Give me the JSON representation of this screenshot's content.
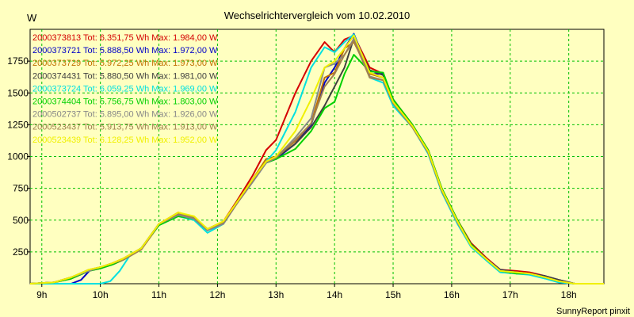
{
  "chart_data": {
    "type": "line",
    "title": "Wechselrichtervergleich vom 10.02.2010",
    "ylabel": "W",
    "credit": "SunnyReport pinxit",
    "xlim": [
      8.8,
      18.6
    ],
    "ylim": [
      0,
      2000
    ],
    "grid": true,
    "legend_position": "top-left",
    "x_ticks": [
      {
        "value": 9,
        "label": "9h"
      },
      {
        "value": 10,
        "label": "10h"
      },
      {
        "value": 11,
        "label": "11h"
      },
      {
        "value": 12,
        "label": "12h"
      },
      {
        "value": 13,
        "label": "13h"
      },
      {
        "value": 14,
        "label": "14h"
      },
      {
        "value": 15,
        "label": "15h"
      },
      {
        "value": 16,
        "label": "16h"
      },
      {
        "value": 17,
        "label": "17h"
      },
      {
        "value": 18,
        "label": "18h"
      }
    ],
    "y_ticks": [
      {
        "value": 250,
        "label": "250"
      },
      {
        "value": 500,
        "label": "500"
      },
      {
        "value": 750,
        "label": "750"
      },
      {
        "value": 1000,
        "label": "1000"
      },
      {
        "value": 1250,
        "label": "1250"
      },
      {
        "value": 1500,
        "label": "1500"
      },
      {
        "value": 1750,
        "label": "1750"
      }
    ],
    "series": [
      {
        "name": "2000373813 Tot: 6.351,75 Wh Max: 1.984,00 W",
        "color": "#d40000",
        "x": [
          8.8,
          9.2,
          9.5,
          9.8,
          10.0,
          10.2,
          10.4,
          10.7,
          11.0,
          11.33,
          11.6,
          11.83,
          12.1,
          12.33,
          12.6,
          12.83,
          13.0,
          13.33,
          13.6,
          13.83,
          14.0,
          14.17,
          14.33,
          14.6,
          14.83,
          15.0,
          15.33,
          15.6,
          15.83,
          16.1,
          16.33,
          16.6,
          16.83,
          17.1,
          17.33,
          17.6,
          17.83,
          18.1,
          18.6
        ],
        "y": [
          0,
          10,
          50,
          100,
          130,
          160,
          200,
          280,
          470,
          560,
          520,
          430,
          490,
          650,
          850,
          1050,
          1130,
          1500,
          1750,
          1900,
          1820,
          1920,
          1950,
          1700,
          1650,
          1450,
          1250,
          1050,
          750,
          500,
          320,
          200,
          110,
          100,
          90,
          60,
          30,
          0,
          0
        ]
      },
      {
        "name": "2000373721 Tot: 5.888,50 Wh Max: 1.972,00 W",
        "color": "#0000c8",
        "x": [
          8.8,
          9.5,
          9.67,
          9.83,
          10.0,
          10.2,
          10.4,
          10.7,
          11.0,
          11.33,
          11.6,
          11.83,
          12.1,
          12.33,
          12.6,
          12.83,
          13.0,
          13.33,
          13.6,
          13.83,
          14.0,
          14.17,
          14.33,
          14.6,
          14.83,
          15.0,
          15.33,
          15.6,
          15.83,
          16.1,
          16.33,
          16.6,
          16.83,
          17.1,
          17.33,
          17.6,
          17.83,
          18.1,
          18.6
        ],
        "y": [
          0,
          0,
          30,
          110,
          130,
          150,
          190,
          280,
          460,
          550,
          520,
          420,
          470,
          630,
          800,
          950,
          980,
          1100,
          1250,
          1580,
          1700,
          1850,
          1965,
          1650,
          1650,
          1450,
          1240,
          1040,
          740,
          490,
          310,
          190,
          110,
          90,
          80,
          60,
          30,
          0,
          0
        ]
      },
      {
        "name": "2000373729 Tot: 5.972,25 Wh Max: 1.973,00 W",
        "color": "#c07000",
        "x": [
          8.8,
          9.2,
          9.5,
          9.8,
          10.0,
          10.2,
          10.4,
          10.7,
          11.0,
          11.33,
          11.6,
          11.83,
          12.1,
          12.33,
          12.6,
          12.83,
          13.0,
          13.33,
          13.6,
          13.83,
          14.0,
          14.17,
          14.33,
          14.6,
          14.83,
          15.0,
          15.33,
          15.6,
          15.83,
          16.1,
          16.33,
          16.6,
          16.83,
          17.1,
          17.33,
          17.6,
          17.83,
          18.1,
          18.6
        ],
        "y": [
          0,
          10,
          40,
          100,
          130,
          150,
          190,
          270,
          460,
          540,
          510,
          420,
          480,
          640,
          820,
          980,
          1000,
          1120,
          1260,
          1620,
          1660,
          1850,
          1900,
          1650,
          1620,
          1420,
          1230,
          1030,
          730,
          480,
          300,
          190,
          100,
          90,
          80,
          50,
          20,
          0,
          0
        ]
      },
      {
        "name": "2000374431 Tot: 5.880,50 Wh Max: 1.981,00 W",
        "color": "#404040",
        "x": [
          8.8,
          9.2,
          9.5,
          9.8,
          10.0,
          10.2,
          10.4,
          10.7,
          11.0,
          11.33,
          11.6,
          11.83,
          12.1,
          12.33,
          12.6,
          12.83,
          13.0,
          13.33,
          13.6,
          13.83,
          14.0,
          14.17,
          14.33,
          14.6,
          14.83,
          15.0,
          15.33,
          15.6,
          15.83,
          16.1,
          16.33,
          16.6,
          16.83,
          17.1,
          17.33,
          17.6,
          17.83,
          18.1,
          18.6
        ],
        "y": [
          0,
          10,
          40,
          100,
          120,
          150,
          190,
          280,
          470,
          550,
          520,
          430,
          480,
          640,
          820,
          960,
          990,
          1100,
          1230,
          1400,
          1550,
          1700,
          1930,
          1680,
          1640,
          1440,
          1250,
          1040,
          740,
          490,
          310,
          190,
          110,
          90,
          80,
          60,
          30,
          0,
          0
        ]
      },
      {
        "name": "2000373724 Tot: 6.059,25 Wh Max: 1.969,00 W",
        "color": "#00e0e0",
        "x": [
          8.8,
          10.0,
          10.17,
          10.33,
          10.5,
          10.7,
          11.0,
          11.33,
          11.6,
          11.83,
          12.1,
          12.33,
          12.6,
          12.83,
          13.0,
          13.33,
          13.6,
          13.83,
          14.0,
          14.17,
          14.33,
          14.6,
          14.83,
          15.0,
          15.33,
          15.6,
          15.83,
          16.1,
          16.33,
          16.6,
          16.83,
          17.1,
          17.33,
          17.6,
          17.83,
          18.1,
          18.6
        ],
        "y": [
          0,
          0,
          20,
          100,
          220,
          280,
          460,
          530,
          500,
          400,
          470,
          640,
          800,
          960,
          1050,
          1350,
          1700,
          1860,
          1820,
          1900,
          1960,
          1620,
          1580,
          1400,
          1230,
          1020,
          720,
          470,
          290,
          180,
          90,
          80,
          70,
          40,
          10,
          0,
          0
        ]
      },
      {
        "name": "2000374404 Tot: 5.756,75 Wh Max: 1.803,00 W",
        "color": "#00d000",
        "x": [
          8.8,
          9.2,
          9.5,
          9.8,
          10.0,
          10.2,
          10.4,
          10.7,
          11.0,
          11.33,
          11.6,
          11.83,
          12.1,
          12.33,
          12.6,
          12.83,
          13.0,
          13.33,
          13.6,
          13.83,
          14.0,
          14.17,
          14.33,
          14.6,
          14.83,
          15.0,
          15.33,
          15.6,
          15.83,
          16.1,
          16.33,
          16.6,
          16.83,
          17.1,
          17.33,
          17.6,
          17.83,
          18.1,
          18.6
        ],
        "y": [
          0,
          10,
          40,
          100,
          120,
          150,
          190,
          280,
          460,
          530,
          510,
          420,
          480,
          640,
          810,
          950,
          980,
          1060,
          1200,
          1380,
          1430,
          1650,
          1800,
          1670,
          1660,
          1450,
          1250,
          1050,
          750,
          500,
          310,
          190,
          100,
          80,
          80,
          50,
          20,
          0,
          0
        ]
      },
      {
        "name": "2000502737 Tot: 5.895,00 Wh Max: 1.926,00 W",
        "color": "#888888",
        "x": [
          8.8,
          9.2,
          9.5,
          9.8,
          10.0,
          10.2,
          10.4,
          10.7,
          11.0,
          11.33,
          11.6,
          11.83,
          12.1,
          12.33,
          12.6,
          12.83,
          13.0,
          13.33,
          13.6,
          13.83,
          14.0,
          14.17,
          14.33,
          14.6,
          14.83,
          15.0,
          15.33,
          15.6,
          15.83,
          16.1,
          16.33,
          16.6,
          16.83,
          17.1,
          17.33,
          17.6,
          17.83,
          18.1,
          18.6
        ],
        "y": [
          0,
          10,
          50,
          100,
          130,
          160,
          190,
          270,
          470,
          540,
          510,
          420,
          470,
          630,
          800,
          950,
          990,
          1150,
          1300,
          1700,
          1730,
          1800,
          1926,
          1630,
          1600,
          1420,
          1230,
          1030,
          730,
          480,
          300,
          190,
          100,
          90,
          80,
          50,
          20,
          0,
          0
        ]
      },
      {
        "name": "2000523437 Tot: 5.913,75 Wh Max: 1.913,00 W",
        "color": "#a08050",
        "x": [
          8.8,
          9.2,
          9.5,
          9.8,
          10.0,
          10.2,
          10.4,
          10.7,
          11.0,
          11.33,
          11.6,
          11.83,
          12.1,
          12.33,
          12.6,
          12.83,
          13.0,
          13.33,
          13.6,
          13.83,
          14.0,
          14.17,
          14.33,
          14.6,
          14.83,
          15.0,
          15.33,
          15.6,
          15.83,
          16.1,
          16.33,
          16.6,
          16.83,
          17.1,
          17.33,
          17.6,
          17.83,
          18.1,
          18.6
        ],
        "y": [
          0,
          10,
          50,
          110,
          130,
          160,
          190,
          270,
          470,
          550,
          520,
          430,
          480,
          630,
          810,
          960,
          990,
          1130,
          1260,
          1550,
          1650,
          1800,
          1913,
          1620,
          1600,
          1420,
          1230,
          1030,
          730,
          490,
          300,
          190,
          100,
          90,
          80,
          50,
          20,
          0,
          0
        ]
      },
      {
        "name": "2000523439 Tot: 6.128,25 Wh Max: 1.952,00 W",
        "color": "#f0f000",
        "x": [
          8.8,
          9.2,
          9.5,
          9.8,
          10.0,
          10.2,
          10.4,
          10.7,
          11.0,
          11.33,
          11.6,
          11.83,
          12.1,
          12.33,
          12.6,
          12.83,
          13.0,
          13.33,
          13.6,
          13.83,
          14.0,
          14.17,
          14.33,
          14.6,
          14.83,
          15.0,
          15.33,
          15.6,
          15.83,
          16.1,
          16.33,
          16.6,
          16.83,
          17.1,
          17.33,
          17.6,
          17.83,
          18.1,
          18.6
        ],
        "y": [
          0,
          10,
          50,
          110,
          130,
          160,
          200,
          280,
          470,
          560,
          530,
          430,
          490,
          640,
          820,
          960,
          1000,
          1200,
          1450,
          1700,
          1750,
          1850,
          1952,
          1660,
          1620,
          1430,
          1240,
          1040,
          740,
          490,
          300,
          190,
          100,
          90,
          80,
          50,
          20,
          0,
          0
        ]
      }
    ]
  }
}
